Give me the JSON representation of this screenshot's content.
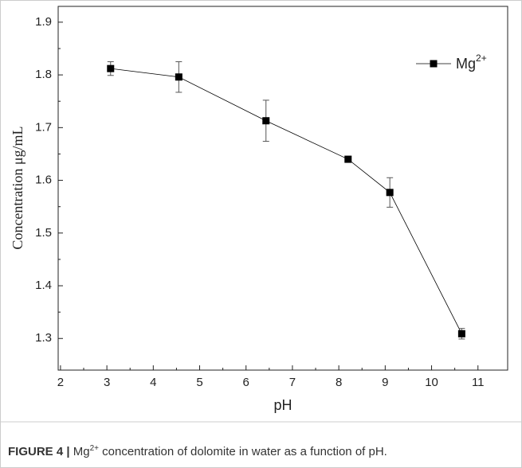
{
  "chart_data": {
    "type": "line",
    "x_label": "pH",
    "y_label": "Concentration μg/mL",
    "x": [
      3.08,
      4.55,
      6.43,
      8.2,
      9.1,
      10.65
    ],
    "series": [
      {
        "name": "Mg",
        "name_superscript": "2+",
        "color": "#000000",
        "values": [
          1.812,
          1.796,
          1.713,
          1.64,
          1.577,
          1.309
        ],
        "errors": [
          0.013,
          0.029,
          0.039,
          0.003,
          0.028,
          0.01
        ]
      }
    ],
    "xlim": [
      1.95,
      11.64
    ],
    "xticks": [
      2,
      3,
      4,
      5,
      6,
      7,
      8,
      9,
      10,
      11
    ],
    "ylim": [
      1.24,
      1.93
    ],
    "yticks": [
      1.3,
      1.4,
      1.5,
      1.6,
      1.7,
      1.8,
      1.9
    ],
    "legend": "top-right",
    "grid": false
  },
  "caption": {
    "label": "FIGURE 4 |",
    "text_before": "Mg",
    "superscript": "2+",
    "text_after": " concentration of dolomite in water as a function of pH."
  }
}
